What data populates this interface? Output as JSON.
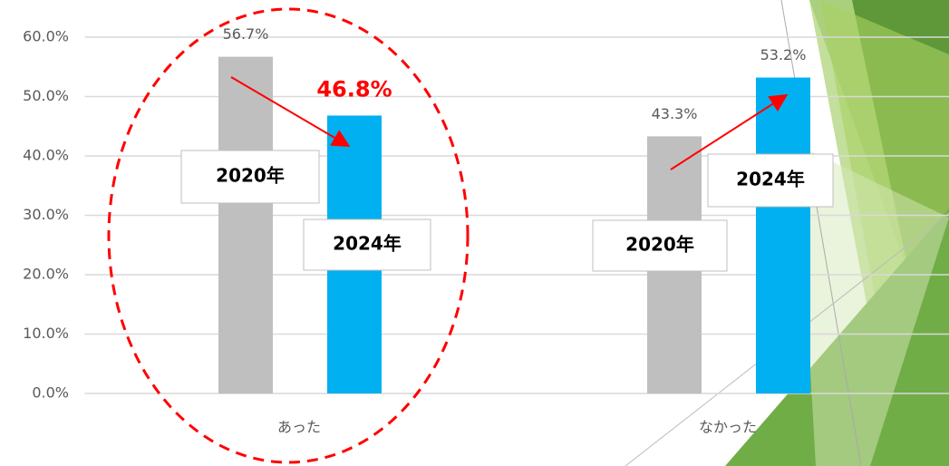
{
  "chart_data": {
    "type": "bar",
    "categories": [
      "あった",
      "なかった"
    ],
    "series": [
      {
        "name": "2020年",
        "color": "#bfbfbf",
        "values": [
          56.7,
          43.3
        ],
        "value_labels": [
          "56.7%",
          "43.3%"
        ]
      },
      {
        "name": "2024年",
        "color": "#00b0f0",
        "values": [
          46.8,
          53.2
        ],
        "value_labels": [
          "46.8%",
          "53.2%"
        ]
      }
    ],
    "ylim": [
      0,
      60
    ],
    "yticks": [
      {
        "value": 0,
        "label": "0.0%"
      },
      {
        "value": 10,
        "label": "10.0%"
      },
      {
        "value": 20,
        "label": "20.0%"
      },
      {
        "value": 30,
        "label": "30.0%"
      },
      {
        "value": 40,
        "label": "40.0%"
      },
      {
        "value": 50,
        "label": "50.0%"
      },
      {
        "value": 60,
        "label": "60.0%"
      }
    ],
    "grid": true
  }
}
